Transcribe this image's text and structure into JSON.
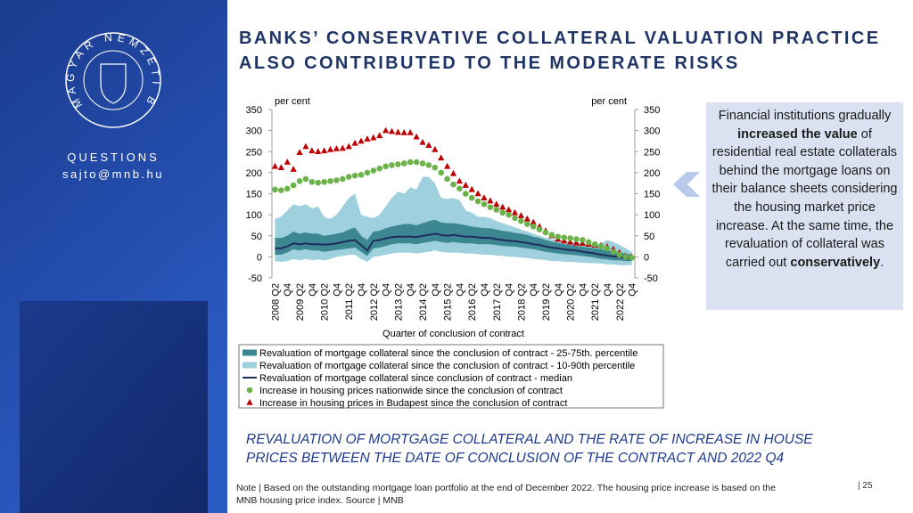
{
  "sidebar": {
    "logo": "MAGYAR NEMZETI BANK",
    "questions": "QUESTIONS",
    "email": "sajto@mnb.hu"
  },
  "header": {
    "title": [
      "BANKS’ CONSERVATIVE COLLATERAL VALUATION PRACTICE",
      "ALSO CONTRIBUTED TO THE MODERATE RISKS"
    ]
  },
  "chart_data": {
    "type": "line",
    "ylabel": "per cent",
    "y2label": "per cent",
    "xlabel": "Quarter of conclusion of contract",
    "ylim": [
      -50,
      350
    ],
    "yticks": [
      -50,
      0,
      50,
      100,
      150,
      200,
      250,
      300,
      350
    ],
    "y2lim": [
      -50,
      350
    ],
    "y2ticks": [
      -50,
      0,
      50,
      100,
      150,
      200,
      250,
      300,
      350
    ],
    "categories": [
      "2008 Q2",
      null,
      "Q4",
      null,
      "2009 Q2",
      null,
      "Q4",
      null,
      "2010 Q2",
      null,
      "Q4",
      null,
      "2011 Q2",
      null,
      "Q4",
      null,
      "2012 Q2",
      null,
      "Q4",
      null,
      "2013 Q2",
      null,
      "Q4",
      null,
      "2014 Q2",
      null,
      "Q4",
      null,
      "2015 Q2",
      null,
      "Q4",
      null,
      "2016 Q2",
      null,
      "Q4",
      null,
      "2017 Q2",
      null,
      "Q4",
      null,
      "2018 Q2",
      null,
      "Q4",
      null,
      "2019 Q2",
      null,
      "Q4",
      null,
      "2020 Q2",
      null,
      "Q4",
      null,
      "2021 Q2",
      null,
      "Q4",
      null,
      "2022 Q2",
      null,
      "Q4"
    ],
    "series": [
      {
        "name": "Revaluation of mortgage collateral since the conclusion of contract - 25-75th. percentile",
        "kind": "band",
        "color": "#3d8793",
        "low": [
          5,
          5,
          10,
          18,
          15,
          18,
          15,
          15,
          12,
          14,
          16,
          18,
          20,
          22,
          12,
          2,
          20,
          22,
          26,
          30,
          32,
          32,
          32,
          30,
          33,
          35,
          38,
          35,
          33,
          35,
          33,
          32,
          32,
          30,
          30,
          30,
          28,
          26,
          25,
          24,
          22,
          20,
          18,
          15,
          12,
          10,
          8,
          6,
          5,
          4,
          2,
          0,
          -2,
          -5,
          -6,
          -8,
          -8,
          -10,
          -10
        ],
        "high": [
          45,
          45,
          50,
          60,
          55,
          58,
          55,
          55,
          50,
          52,
          55,
          58,
          65,
          70,
          50,
          40,
          60,
          62,
          68,
          72,
          75,
          78,
          78,
          75,
          80,
          85,
          88,
          82,
          80,
          80,
          78,
          75,
          72,
          70,
          68,
          68,
          65,
          62,
          60,
          57,
          55,
          52,
          48,
          45,
          40,
          36,
          33,
          30,
          28,
          26,
          24,
          22,
          20,
          18,
          15,
          12,
          10,
          8,
          5
        ]
      },
      {
        "name": "Revaluation of mortgage collateral since the conclusion of contract - 10-90th percentile",
        "kind": "band",
        "color": "#9ed0dd",
        "low": [
          -10,
          -12,
          -10,
          -5,
          -8,
          -5,
          -8,
          -6,
          -8,
          -5,
          0,
          2,
          5,
          5,
          -5,
          -12,
          0,
          2,
          5,
          8,
          10,
          10,
          10,
          8,
          10,
          12,
          15,
          12,
          10,
          10,
          10,
          8,
          8,
          6,
          5,
          5,
          3,
          2,
          0,
          0,
          -2,
          -3,
          -5,
          -6,
          -8,
          -10,
          -10,
          -12,
          -12,
          -13,
          -14,
          -15,
          -15,
          -16,
          -18,
          -18,
          -20,
          -20,
          -20
        ],
        "high": [
          90,
          95,
          110,
          125,
          120,
          125,
          115,
          120,
          95,
          90,
          100,
          120,
          140,
          150,
          100,
          95,
          92,
          100,
          120,
          140,
          155,
          150,
          165,
          160,
          190,
          190,
          175,
          140,
          138,
          140,
          135,
          110,
          105,
          95,
          95,
          92,
          85,
          80,
          75,
          70,
          65,
          60,
          55,
          50,
          45,
          42,
          40,
          38,
          35,
          35,
          32,
          30,
          30,
          32,
          40,
          35,
          28,
          20,
          12
        ]
      },
      {
        "name": "Revaluation of mortgage collateral since conclusion of contract - median",
        "kind": "line",
        "color": "#1f2d5c",
        "values": [
          20,
          20,
          25,
          32,
          30,
          32,
          30,
          30,
          29,
          30,
          32,
          35,
          38,
          40,
          28,
          15,
          38,
          40,
          44,
          47,
          48,
          48,
          48,
          47,
          50,
          52,
          55,
          52,
          50,
          52,
          50,
          48,
          48,
          46,
          45,
          45,
          42,
          40,
          38,
          37,
          35,
          33,
          30,
          28,
          25,
          22,
          20,
          18,
          16,
          15,
          12,
          10,
          8,
          5,
          3,
          1,
          0,
          -2,
          -3
        ]
      },
      {
        "name": "Increase in housing prices nationwide since the conclusion of contract",
        "kind": "scatter",
        "marker": "circle",
        "color": "#6cb24a",
        "values": [
          160,
          158,
          162,
          170,
          180,
          185,
          178,
          176,
          178,
          180,
          182,
          185,
          190,
          193,
          195,
          200,
          205,
          210,
          215,
          218,
          220,
          222,
          225,
          225,
          222,
          218,
          212,
          200,
          185,
          172,
          162,
          150,
          140,
          132,
          125,
          118,
          112,
          105,
          100,
          92,
          85,
          78,
          72,
          65,
          58,
          52,
          48,
          46,
          44,
          42,
          40,
          35,
          30,
          25,
          20,
          12,
          5,
          0,
          -2
        ]
      },
      {
        "name": "Increase in housing prices in Budapest since the conclusion of contract",
        "kind": "scatter",
        "marker": "triangle",
        "color": "#c00000",
        "values": [
          215,
          212,
          225,
          208,
          248,
          262,
          252,
          250,
          252,
          255,
          257,
          258,
          262,
          270,
          275,
          280,
          283,
          288,
          300,
          298,
          296,
          295,
          295,
          285,
          272,
          265,
          255,
          235,
          215,
          198,
          180,
          170,
          160,
          150,
          140,
          133,
          125,
          118,
          112,
          105,
          98,
          90,
          82,
          72,
          62,
          50,
          42,
          38,
          35,
          33,
          32,
          30,
          28,
          27,
          24,
          18,
          10,
          2,
          0
        ]
      }
    ]
  },
  "callout": [
    {
      "text": "Financial institutions gradually ",
      "bold": false
    },
    {
      "text": "increased the value",
      "bold": true
    },
    {
      "text": " of residential real estate collaterals behind the mortgage loans on their balance sheets considering the housing market price increase. At the same time, the revaluation of collateral was carried out ",
      "bold": false
    },
    {
      "text": "conservatively",
      "bold": true
    },
    {
      "text": ".",
      "bold": false
    }
  ],
  "caption": "REVALUATION OF MORTGAGE COLLATERAL AND THE RATE OF INCREASE IN HOUSE PRICES BETWEEN THE DATE OF CONCLUSION OF THE CONTRACT AND 2022 Q4",
  "note": "Note | Based on the outstanding mortgage loan portfolio at the end of December 2022. The housing price increase is based on the MNB housing price index. Source | MNB",
  "page_number": "| 25"
}
